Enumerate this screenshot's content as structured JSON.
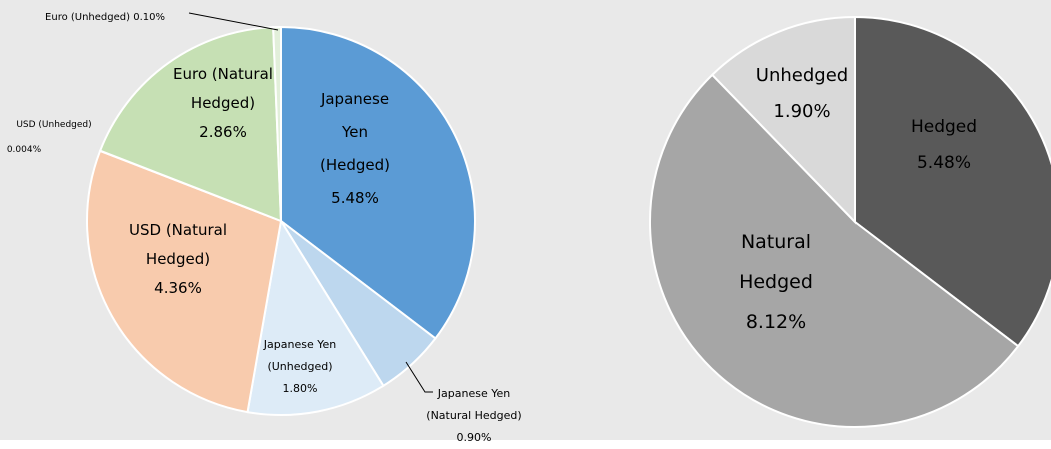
{
  "chart_data": [
    {
      "type": "pie",
      "slices": [
        {
          "label": [
            "Japanese",
            "Yen",
            "(Hedged)"
          ],
          "pct": "5.48%",
          "value": 5.48,
          "color": "#5b9bd5"
        },
        {
          "label": [
            "Japanese Yen",
            "(Natural Hedged)"
          ],
          "pct": "0.90%",
          "value": 0.9,
          "color": "#bdd7ee"
        },
        {
          "label": [
            "Japanese Yen",
            "(Unhedged)"
          ],
          "pct": "1.80%",
          "value": 1.8,
          "color": "#ddebf7"
        },
        {
          "label": [
            "USD (Natural",
            "Hedged)"
          ],
          "pct": "4.36%",
          "value": 4.36,
          "color": "#f8cbad"
        },
        {
          "label": [
            "USD (Unhedged)"
          ],
          "pct": "0.004%",
          "value": 0.004,
          "color": "#fbe5d6"
        },
        {
          "label": [
            "Euro (Natural",
            "Hedged)"
          ],
          "pct": "2.86%",
          "value": 2.86,
          "color": "#c6e0b4"
        },
        {
          "label": [
            "Euro (Unhedged)"
          ],
          "pct": "0.10%",
          "value": 0.1,
          "color": "#e2efda"
        }
      ]
    },
    {
      "type": "pie",
      "slices": [
        {
          "label": [
            "Hedged"
          ],
          "pct": "5.48%",
          "value": 5.48,
          "color": "#595959"
        },
        {
          "label": [
            "Natural",
            "Hedged"
          ],
          "pct": "8.12%",
          "value": 8.12,
          "color": "#a6a6a6"
        },
        {
          "label": [
            "Unhedged"
          ],
          "pct": "1.90%",
          "value": 1.9,
          "color": "#d9d9d9"
        }
      ]
    }
  ]
}
